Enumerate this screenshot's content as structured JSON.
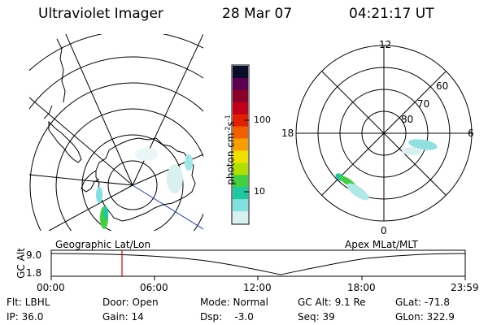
{
  "header": {
    "instrument": "Ultraviolet Imager",
    "date": "28 Mar 07",
    "time": "04:21:17 UT"
  },
  "colorbar": {
    "label": "photon cm",
    "label_exp1": "-2",
    "label_mid": "s",
    "label_exp2": "-1",
    "ticks": [
      "100",
      "10"
    ],
    "colors": [
      "#0b0b2a",
      "#5a0050",
      "#8a0028",
      "#c0001a",
      "#e02000",
      "#f06000",
      "#f5a000",
      "#f0e000",
      "#b0e000",
      "#40d040",
      "#20c8a0",
      "#80e0e0",
      "#d8f0f0"
    ]
  },
  "left_map": {
    "label": "Geographic Lat/Lon"
  },
  "right_map": {
    "label": "Apex MLat/MLT",
    "mlt_labels": {
      "top": "12",
      "left": "18",
      "right": "6",
      "bottom": "0"
    },
    "lat_labels": [
      "60",
      "70",
      "80"
    ]
  },
  "altitude_panel": {
    "axis_label": "GC Alt",
    "y_ticks": [
      "9.0",
      "1.8"
    ],
    "x_ticks": [
      "00:00",
      "06:00",
      "12:00",
      "18:00",
      "23:59"
    ],
    "marker_time": "04:21"
  },
  "footer": {
    "filter": "Flt: LBHL",
    "ip": "IP: 36.0",
    "door": "Door: Open",
    "gain": "Gain: 14",
    "mode": "Mode: Normal",
    "dsp": "Dsp:    -3.0",
    "gc_alt": "GC Alt: 9.1 Re",
    "seq": "Seq: 39",
    "glat": "GLat: -71.8",
    "glon": "GLon: 322.9"
  }
}
